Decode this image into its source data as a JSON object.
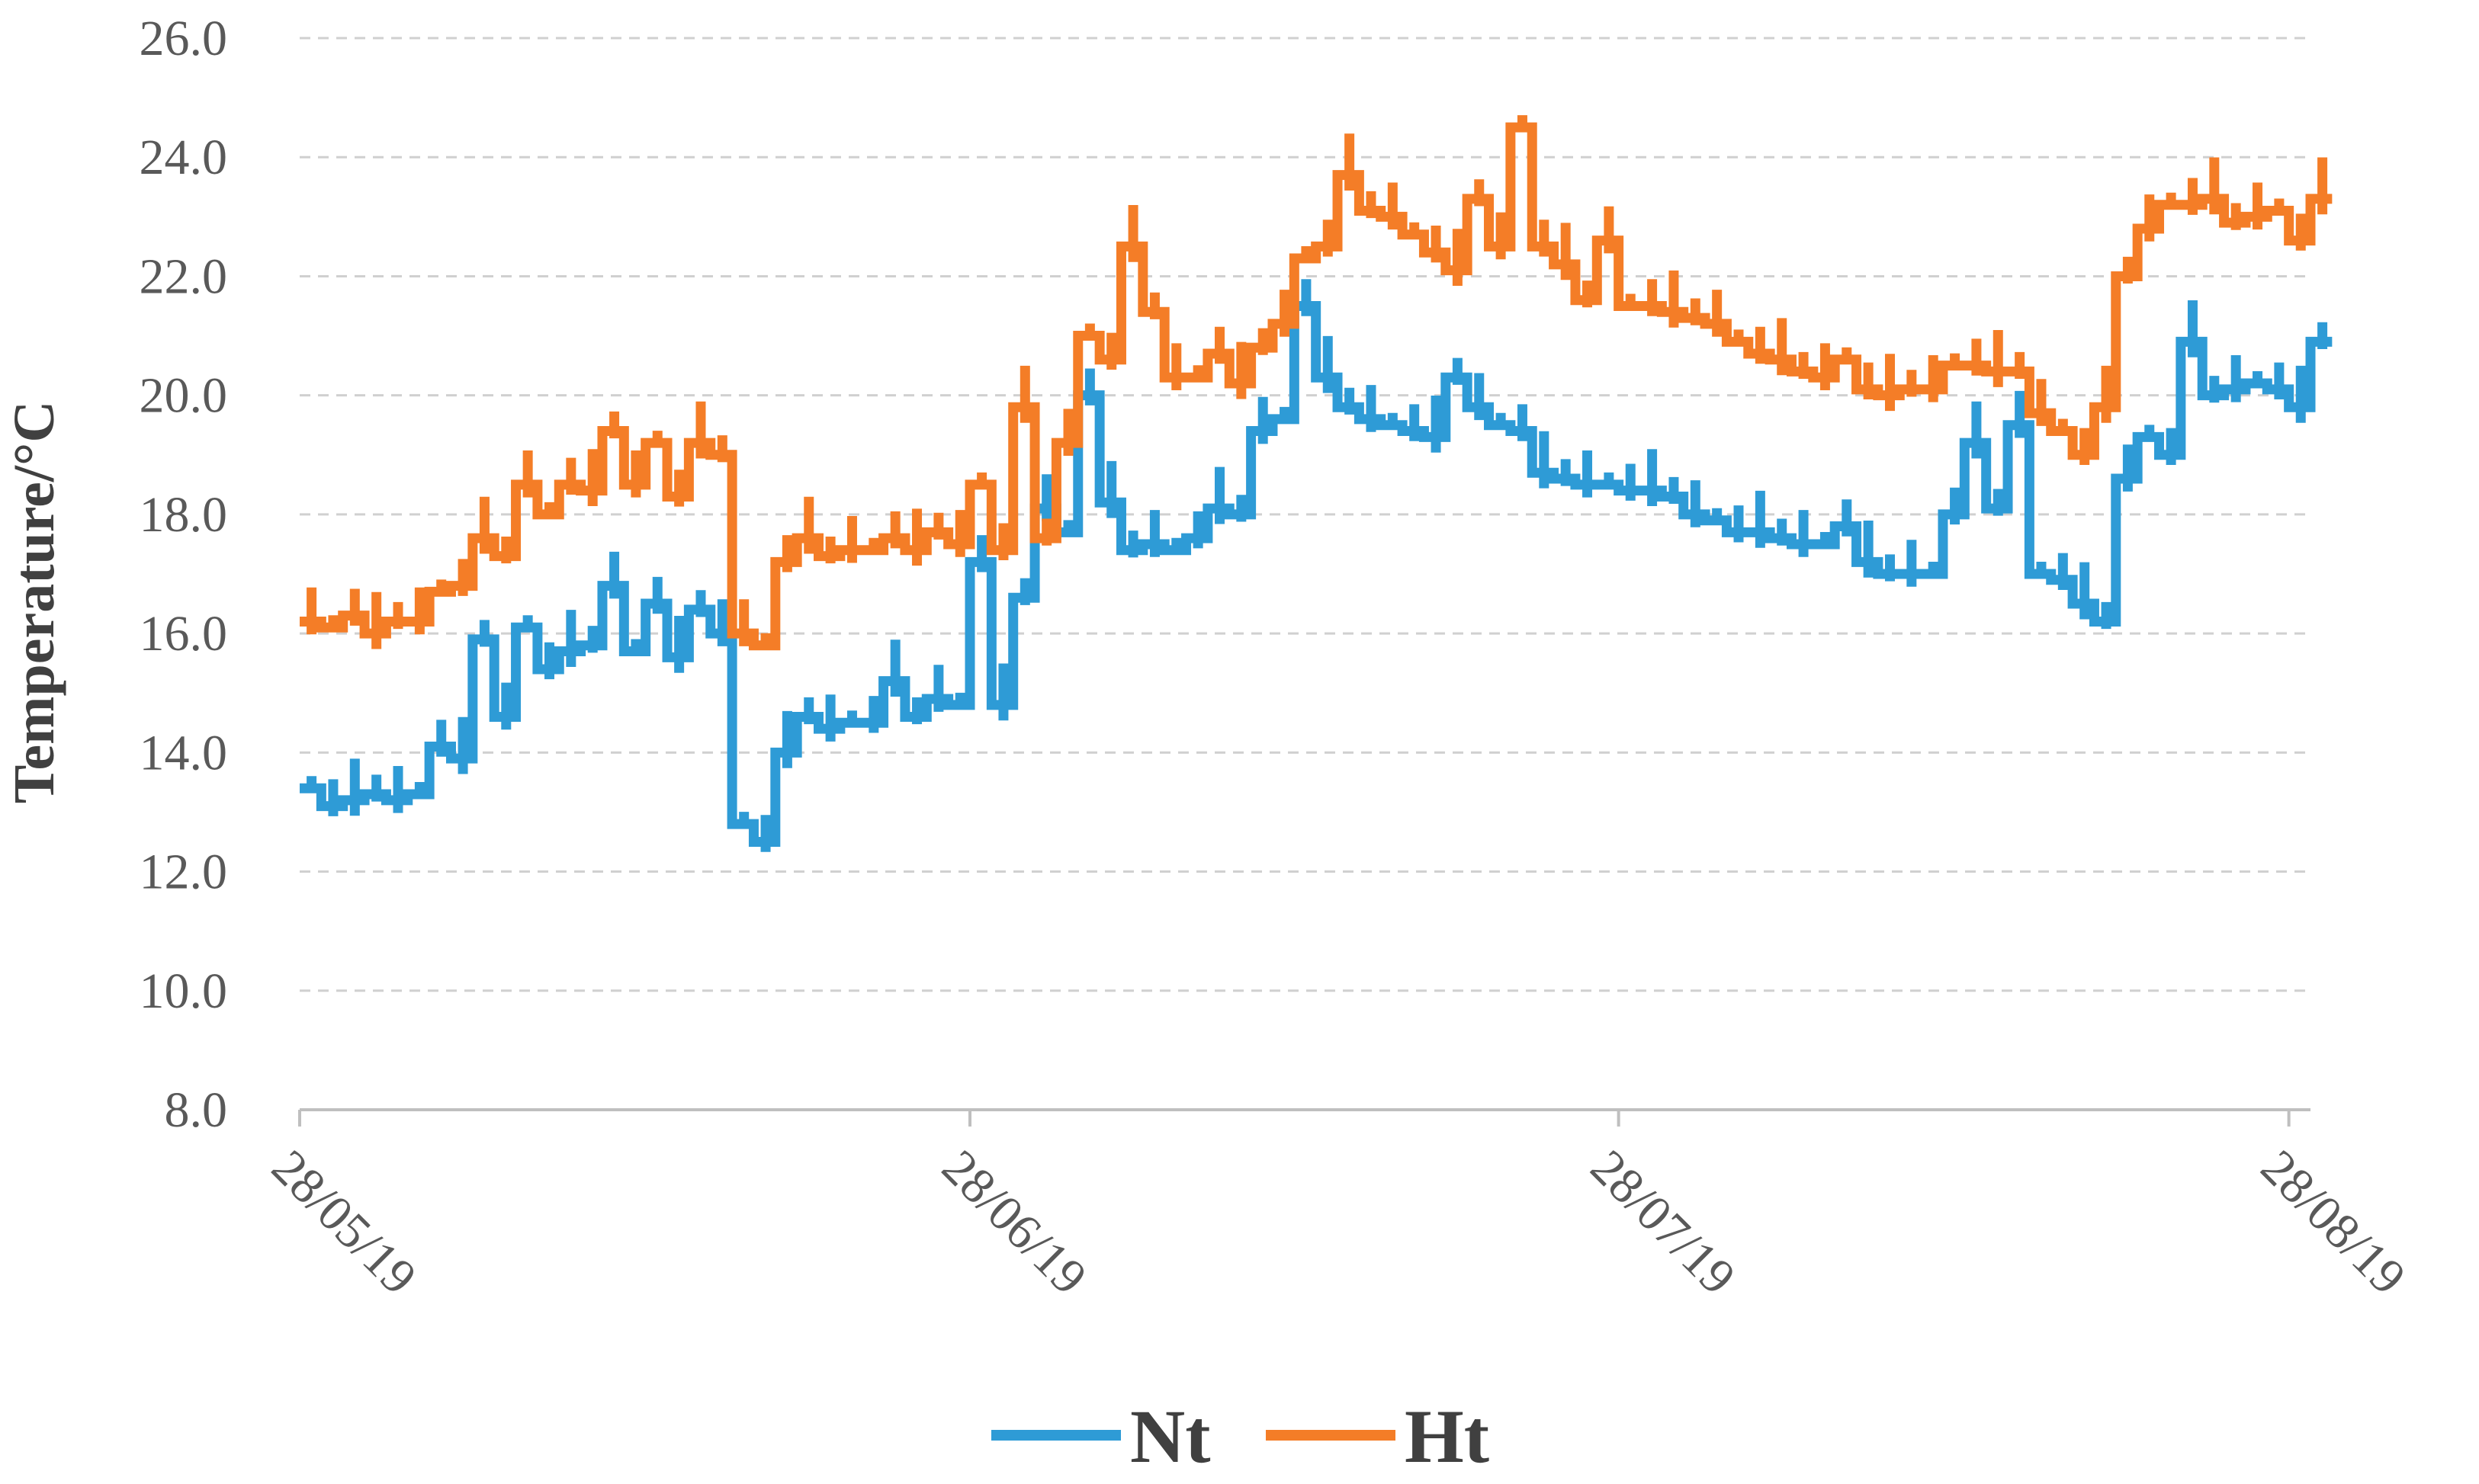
{
  "chart_data": {
    "type": "line",
    "ylabel": "Temperature/°C",
    "xlabel": "",
    "ylim": [
      8,
      26
    ],
    "yticks": [
      "8.0",
      "10.0",
      "12.0",
      "14.0",
      "16.0",
      "18.0",
      "20.0",
      "22.0",
      "24.0",
      "26.0"
    ],
    "xlim": [
      "2019-05-28",
      "2019-08-29"
    ],
    "xticks": [
      {
        "date": "2019-05-28",
        "label": "28/05/19"
      },
      {
        "date": "2019-06-28",
        "label": "28/06/19"
      },
      {
        "date": "2019-07-28",
        "label": "28/07/19"
      },
      {
        "date": "2019-08-28",
        "label": "28/08/19"
      }
    ],
    "grid": "horizontal-dashed",
    "legend": "bottom",
    "series": [
      {
        "name": "Nt",
        "color": "#2E9BD6",
        "points": [
          [
            "2019-05-28",
            13.4
          ],
          [
            "2019-05-29",
            13.1
          ],
          [
            "2019-05-30",
            13.2
          ],
          [
            "2019-05-31",
            13.3
          ],
          [
            "2019-06-01",
            13.2
          ],
          [
            "2019-06-02",
            13.3
          ],
          [
            "2019-06-03",
            14.1
          ],
          [
            "2019-06-04",
            13.9
          ],
          [
            "2019-06-05",
            15.9
          ],
          [
            "2019-06-06",
            14.6
          ],
          [
            "2019-06-07",
            16.1
          ],
          [
            "2019-06-08",
            15.4
          ],
          [
            "2019-06-09",
            15.7
          ],
          [
            "2019-06-10",
            15.8
          ],
          [
            "2019-06-11",
            16.8
          ],
          [
            "2019-06-12",
            15.7
          ],
          [
            "2019-06-13",
            16.5
          ],
          [
            "2019-06-14",
            15.6
          ],
          [
            "2019-06-15",
            16.4
          ],
          [
            "2019-06-16",
            16.0
          ],
          [
            "2019-06-17",
            12.8
          ],
          [
            "2019-06-18",
            12.5
          ],
          [
            "2019-06-19",
            14.0
          ],
          [
            "2019-06-20",
            14.6
          ],
          [
            "2019-06-21",
            14.4
          ],
          [
            "2019-06-22",
            14.5
          ],
          [
            "2019-06-23",
            14.5
          ],
          [
            "2019-06-24",
            15.2
          ],
          [
            "2019-06-25",
            14.6
          ],
          [
            "2019-06-26",
            14.9
          ],
          [
            "2019-06-27",
            14.8
          ],
          [
            "2019-06-28",
            17.2
          ],
          [
            "2019-06-29",
            14.8
          ],
          [
            "2019-06-30",
            16.6
          ],
          [
            "2019-07-01",
            18.1
          ],
          [
            "2019-07-02",
            17.7
          ],
          [
            "2019-07-03",
            20.0
          ],
          [
            "2019-07-04",
            18.2
          ],
          [
            "2019-07-05",
            17.4
          ],
          [
            "2019-07-06",
            17.5
          ],
          [
            "2019-07-07",
            17.4
          ],
          [
            "2019-07-08",
            17.6
          ],
          [
            "2019-07-09",
            18.1
          ],
          [
            "2019-07-10",
            18.0
          ],
          [
            "2019-07-11",
            19.4
          ],
          [
            "2019-07-12",
            19.6
          ],
          [
            "2019-07-13",
            21.5
          ],
          [
            "2019-07-14",
            20.3
          ],
          [
            "2019-07-15",
            19.8
          ],
          [
            "2019-07-16",
            19.6
          ],
          [
            "2019-07-17",
            19.5
          ],
          [
            "2019-07-18",
            19.4
          ],
          [
            "2019-07-19",
            19.3
          ],
          [
            "2019-07-20",
            20.3
          ],
          [
            "2019-07-21",
            19.8
          ],
          [
            "2019-07-22",
            19.5
          ],
          [
            "2019-07-23",
            19.4
          ],
          [
            "2019-07-24",
            18.7
          ],
          [
            "2019-07-25",
            18.6
          ],
          [
            "2019-07-26",
            18.5
          ],
          [
            "2019-07-27",
            18.5
          ],
          [
            "2019-07-28",
            18.4
          ],
          [
            "2019-07-29",
            18.4
          ],
          [
            "2019-07-30",
            18.3
          ],
          [
            "2019-07-31",
            18.0
          ],
          [
            "2019-08-01",
            17.9
          ],
          [
            "2019-08-02",
            17.7
          ],
          [
            "2019-08-03",
            17.7
          ],
          [
            "2019-08-04",
            17.6
          ],
          [
            "2019-08-05",
            17.5
          ],
          [
            "2019-08-06",
            17.5
          ],
          [
            "2019-08-07",
            17.8
          ],
          [
            "2019-08-08",
            17.2
          ],
          [
            "2019-08-09",
            17.0
          ],
          [
            "2019-08-10",
            17.0
          ],
          [
            "2019-08-11",
            17.0
          ],
          [
            "2019-08-12",
            18.0
          ],
          [
            "2019-08-13",
            19.2
          ],
          [
            "2019-08-14",
            18.1
          ],
          [
            "2019-08-15",
            19.5
          ],
          [
            "2019-08-16",
            17.0
          ],
          [
            "2019-08-17",
            16.9
          ],
          [
            "2019-08-18",
            16.5
          ],
          [
            "2019-08-19",
            16.2
          ],
          [
            "2019-08-20",
            18.6
          ],
          [
            "2019-08-21",
            19.3
          ],
          [
            "2019-08-22",
            19.0
          ],
          [
            "2019-08-23",
            20.9
          ],
          [
            "2019-08-24",
            20.0
          ],
          [
            "2019-08-25",
            20.1
          ],
          [
            "2019-08-26",
            20.2
          ],
          [
            "2019-08-27",
            20.1
          ],
          [
            "2019-08-28",
            19.8
          ],
          [
            "2019-08-29",
            20.9
          ]
        ]
      },
      {
        "name": "Ht",
        "color": "#F47D27",
        "points": [
          [
            "2019-05-28",
            16.2
          ],
          [
            "2019-05-29",
            16.1
          ],
          [
            "2019-05-30",
            16.3
          ],
          [
            "2019-05-31",
            16.0
          ],
          [
            "2019-06-01",
            16.2
          ],
          [
            "2019-06-02",
            16.2
          ],
          [
            "2019-06-03",
            16.7
          ],
          [
            "2019-06-04",
            16.8
          ],
          [
            "2019-06-05",
            17.6
          ],
          [
            "2019-06-06",
            17.3
          ],
          [
            "2019-06-07",
            18.5
          ],
          [
            "2019-06-08",
            18.0
          ],
          [
            "2019-06-09",
            18.5
          ],
          [
            "2019-06-10",
            18.4
          ],
          [
            "2019-06-11",
            19.4
          ],
          [
            "2019-06-12",
            18.5
          ],
          [
            "2019-06-13",
            19.2
          ],
          [
            "2019-06-14",
            18.3
          ],
          [
            "2019-06-15",
            19.2
          ],
          [
            "2019-06-16",
            19.0
          ],
          [
            "2019-06-17",
            16.0
          ],
          [
            "2019-06-18",
            15.8
          ],
          [
            "2019-06-19",
            17.2
          ],
          [
            "2019-06-20",
            17.6
          ],
          [
            "2019-06-21",
            17.3
          ],
          [
            "2019-06-22",
            17.4
          ],
          [
            "2019-06-23",
            17.4
          ],
          [
            "2019-06-24",
            17.6
          ],
          [
            "2019-06-25",
            17.4
          ],
          [
            "2019-06-26",
            17.7
          ],
          [
            "2019-06-27",
            17.5
          ],
          [
            "2019-06-28",
            18.5
          ],
          [
            "2019-06-29",
            17.4
          ],
          [
            "2019-06-30",
            19.8
          ],
          [
            "2019-07-01",
            17.6
          ],
          [
            "2019-07-02",
            19.2
          ],
          [
            "2019-07-03",
            21.0
          ],
          [
            "2019-07-04",
            20.6
          ],
          [
            "2019-07-05",
            22.5
          ],
          [
            "2019-07-06",
            21.4
          ],
          [
            "2019-07-07",
            20.3
          ],
          [
            "2019-07-08",
            20.3
          ],
          [
            "2019-07-09",
            20.7
          ],
          [
            "2019-07-10",
            20.2
          ],
          [
            "2019-07-11",
            20.8
          ],
          [
            "2019-07-12",
            21.2
          ],
          [
            "2019-07-13",
            22.3
          ],
          [
            "2019-07-14",
            22.5
          ],
          [
            "2019-07-15",
            23.7
          ],
          [
            "2019-07-16",
            23.1
          ],
          [
            "2019-07-17",
            23.0
          ],
          [
            "2019-07-18",
            22.7
          ],
          [
            "2019-07-19",
            22.4
          ],
          [
            "2019-07-20",
            22.1
          ],
          [
            "2019-07-21",
            23.3
          ],
          [
            "2019-07-22",
            22.5
          ],
          [
            "2019-07-23",
            24.5
          ],
          [
            "2019-07-24",
            22.5
          ],
          [
            "2019-07-25",
            22.2
          ],
          [
            "2019-07-26",
            21.6
          ],
          [
            "2019-07-27",
            22.6
          ],
          [
            "2019-07-28",
            21.5
          ],
          [
            "2019-07-29",
            21.5
          ],
          [
            "2019-07-30",
            21.4
          ],
          [
            "2019-07-31",
            21.3
          ],
          [
            "2019-08-01",
            21.2
          ],
          [
            "2019-08-02",
            20.9
          ],
          [
            "2019-08-03",
            20.7
          ],
          [
            "2019-08-04",
            20.6
          ],
          [
            "2019-08-05",
            20.4
          ],
          [
            "2019-08-06",
            20.3
          ],
          [
            "2019-08-07",
            20.6
          ],
          [
            "2019-08-08",
            20.1
          ],
          [
            "2019-08-09",
            20.0
          ],
          [
            "2019-08-10",
            20.1
          ],
          [
            "2019-08-11",
            20.1
          ],
          [
            "2019-08-12",
            20.5
          ],
          [
            "2019-08-13",
            20.5
          ],
          [
            "2019-08-14",
            20.4
          ],
          [
            "2019-08-15",
            20.4
          ],
          [
            "2019-08-16",
            19.7
          ],
          [
            "2019-08-17",
            19.4
          ],
          [
            "2019-08-18",
            19.0
          ],
          [
            "2019-08-19",
            19.8
          ],
          [
            "2019-08-20",
            22.0
          ],
          [
            "2019-08-21",
            22.8
          ],
          [
            "2019-08-22",
            23.2
          ],
          [
            "2019-08-23",
            23.2
          ],
          [
            "2019-08-24",
            23.3
          ],
          [
            "2019-08-25",
            22.9
          ],
          [
            "2019-08-26",
            23.0
          ],
          [
            "2019-08-27",
            23.1
          ],
          [
            "2019-08-28",
            22.6
          ],
          [
            "2019-08-29",
            23.3
          ]
        ]
      }
    ]
  }
}
